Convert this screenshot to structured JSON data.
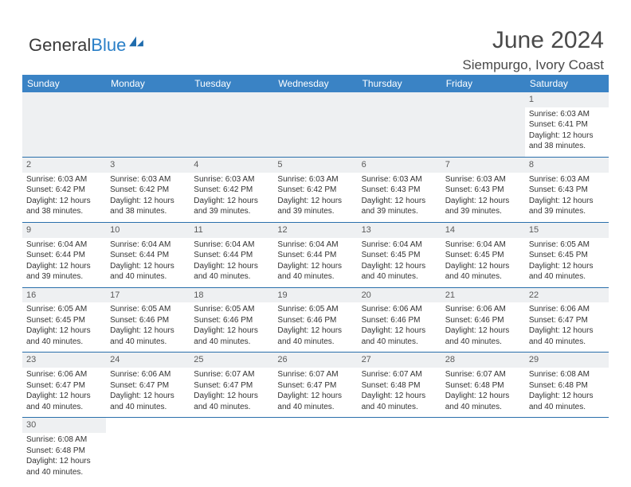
{
  "brand": {
    "text1": "General",
    "text2": "Blue",
    "color_blue": "#2a7fc7",
    "icon_color": "#1f6cad"
  },
  "title": "June 2024",
  "location": "Siempurgo, Ivory Coast",
  "header_bg": "#3a83c5",
  "row_border": "#2a6fab",
  "blank_bg": "#eef0f2",
  "weekdays": [
    "Sunday",
    "Monday",
    "Tuesday",
    "Wednesday",
    "Thursday",
    "Friday",
    "Saturday"
  ],
  "weeks": [
    [
      null,
      null,
      null,
      null,
      null,
      null,
      {
        "n": "1",
        "sr": "Sunrise: 6:03 AM",
        "ss": "Sunset: 6:41 PM",
        "d1": "Daylight: 12 hours",
        "d2": "and 38 minutes."
      }
    ],
    [
      {
        "n": "2",
        "sr": "Sunrise: 6:03 AM",
        "ss": "Sunset: 6:42 PM",
        "d1": "Daylight: 12 hours",
        "d2": "and 38 minutes."
      },
      {
        "n": "3",
        "sr": "Sunrise: 6:03 AM",
        "ss": "Sunset: 6:42 PM",
        "d1": "Daylight: 12 hours",
        "d2": "and 38 minutes."
      },
      {
        "n": "4",
        "sr": "Sunrise: 6:03 AM",
        "ss": "Sunset: 6:42 PM",
        "d1": "Daylight: 12 hours",
        "d2": "and 39 minutes."
      },
      {
        "n": "5",
        "sr": "Sunrise: 6:03 AM",
        "ss": "Sunset: 6:42 PM",
        "d1": "Daylight: 12 hours",
        "d2": "and 39 minutes."
      },
      {
        "n": "6",
        "sr": "Sunrise: 6:03 AM",
        "ss": "Sunset: 6:43 PM",
        "d1": "Daylight: 12 hours",
        "d2": "and 39 minutes."
      },
      {
        "n": "7",
        "sr": "Sunrise: 6:03 AM",
        "ss": "Sunset: 6:43 PM",
        "d1": "Daylight: 12 hours",
        "d2": "and 39 minutes."
      },
      {
        "n": "8",
        "sr": "Sunrise: 6:03 AM",
        "ss": "Sunset: 6:43 PM",
        "d1": "Daylight: 12 hours",
        "d2": "and 39 minutes."
      }
    ],
    [
      {
        "n": "9",
        "sr": "Sunrise: 6:04 AM",
        "ss": "Sunset: 6:44 PM",
        "d1": "Daylight: 12 hours",
        "d2": "and 39 minutes."
      },
      {
        "n": "10",
        "sr": "Sunrise: 6:04 AM",
        "ss": "Sunset: 6:44 PM",
        "d1": "Daylight: 12 hours",
        "d2": "and 40 minutes."
      },
      {
        "n": "11",
        "sr": "Sunrise: 6:04 AM",
        "ss": "Sunset: 6:44 PM",
        "d1": "Daylight: 12 hours",
        "d2": "and 40 minutes."
      },
      {
        "n": "12",
        "sr": "Sunrise: 6:04 AM",
        "ss": "Sunset: 6:44 PM",
        "d1": "Daylight: 12 hours",
        "d2": "and 40 minutes."
      },
      {
        "n": "13",
        "sr": "Sunrise: 6:04 AM",
        "ss": "Sunset: 6:45 PM",
        "d1": "Daylight: 12 hours",
        "d2": "and 40 minutes."
      },
      {
        "n": "14",
        "sr": "Sunrise: 6:04 AM",
        "ss": "Sunset: 6:45 PM",
        "d1": "Daylight: 12 hours",
        "d2": "and 40 minutes."
      },
      {
        "n": "15",
        "sr": "Sunrise: 6:05 AM",
        "ss": "Sunset: 6:45 PM",
        "d1": "Daylight: 12 hours",
        "d2": "and 40 minutes."
      }
    ],
    [
      {
        "n": "16",
        "sr": "Sunrise: 6:05 AM",
        "ss": "Sunset: 6:45 PM",
        "d1": "Daylight: 12 hours",
        "d2": "and 40 minutes."
      },
      {
        "n": "17",
        "sr": "Sunrise: 6:05 AM",
        "ss": "Sunset: 6:46 PM",
        "d1": "Daylight: 12 hours",
        "d2": "and 40 minutes."
      },
      {
        "n": "18",
        "sr": "Sunrise: 6:05 AM",
        "ss": "Sunset: 6:46 PM",
        "d1": "Daylight: 12 hours",
        "d2": "and 40 minutes."
      },
      {
        "n": "19",
        "sr": "Sunrise: 6:05 AM",
        "ss": "Sunset: 6:46 PM",
        "d1": "Daylight: 12 hours",
        "d2": "and 40 minutes."
      },
      {
        "n": "20",
        "sr": "Sunrise: 6:06 AM",
        "ss": "Sunset: 6:46 PM",
        "d1": "Daylight: 12 hours",
        "d2": "and 40 minutes."
      },
      {
        "n": "21",
        "sr": "Sunrise: 6:06 AM",
        "ss": "Sunset: 6:46 PM",
        "d1": "Daylight: 12 hours",
        "d2": "and 40 minutes."
      },
      {
        "n": "22",
        "sr": "Sunrise: 6:06 AM",
        "ss": "Sunset: 6:47 PM",
        "d1": "Daylight: 12 hours",
        "d2": "and 40 minutes."
      }
    ],
    [
      {
        "n": "23",
        "sr": "Sunrise: 6:06 AM",
        "ss": "Sunset: 6:47 PM",
        "d1": "Daylight: 12 hours",
        "d2": "and 40 minutes."
      },
      {
        "n": "24",
        "sr": "Sunrise: 6:06 AM",
        "ss": "Sunset: 6:47 PM",
        "d1": "Daylight: 12 hours",
        "d2": "and 40 minutes."
      },
      {
        "n": "25",
        "sr": "Sunrise: 6:07 AM",
        "ss": "Sunset: 6:47 PM",
        "d1": "Daylight: 12 hours",
        "d2": "and 40 minutes."
      },
      {
        "n": "26",
        "sr": "Sunrise: 6:07 AM",
        "ss": "Sunset: 6:47 PM",
        "d1": "Daylight: 12 hours",
        "d2": "and 40 minutes."
      },
      {
        "n": "27",
        "sr": "Sunrise: 6:07 AM",
        "ss": "Sunset: 6:48 PM",
        "d1": "Daylight: 12 hours",
        "d2": "and 40 minutes."
      },
      {
        "n": "28",
        "sr": "Sunrise: 6:07 AM",
        "ss": "Sunset: 6:48 PM",
        "d1": "Daylight: 12 hours",
        "d2": "and 40 minutes."
      },
      {
        "n": "29",
        "sr": "Sunrise: 6:08 AM",
        "ss": "Sunset: 6:48 PM",
        "d1": "Daylight: 12 hours",
        "d2": "and 40 minutes."
      }
    ],
    [
      {
        "n": "30",
        "sr": "Sunrise: 6:08 AM",
        "ss": "Sunset: 6:48 PM",
        "d1": "Daylight: 12 hours",
        "d2": "and 40 minutes."
      },
      null,
      null,
      null,
      null,
      null,
      null
    ]
  ]
}
